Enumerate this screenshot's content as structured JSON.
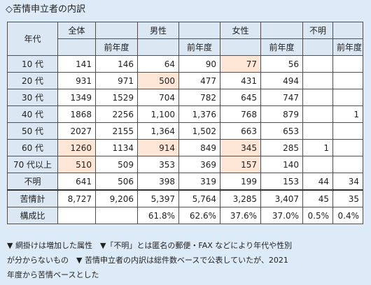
{
  "title": "◇苦情申立者の内訳",
  "table": {
    "corner": "年代",
    "groups": [
      "全体",
      "男性",
      "女性",
      "不明"
    ],
    "prev_label": "前年度",
    "rows": [
      {
        "label": "10 代",
        "cells": [
          "141",
          "146",
          "64",
          "90",
          "77",
          "56",
          "",
          ""
        ],
        "hl": [
          4
        ]
      },
      {
        "label": "20 代",
        "cells": [
          "931",
          "971",
          "500",
          "477",
          "431",
          "494",
          "",
          ""
        ],
        "hl": [
          2
        ]
      },
      {
        "label": "30 代",
        "cells": [
          "1349",
          "1529",
          "704",
          "782",
          "645",
          "747",
          "",
          ""
        ],
        "hl": []
      },
      {
        "label": "40 代",
        "cells": [
          "1868",
          "2256",
          "1,100",
          "1,376",
          "768",
          "879",
          "",
          "1"
        ],
        "hl": []
      },
      {
        "label": "50 代",
        "cells": [
          "2027",
          "2155",
          "1,364",
          "1,502",
          "663",
          "653",
          "",
          ""
        ],
        "hl": []
      },
      {
        "label": "60 代",
        "cells": [
          "1260",
          "1134",
          "914",
          "849",
          "345",
          "285",
          "1",
          ""
        ],
        "hl": [
          0,
          2,
          4
        ]
      },
      {
        "label": "70 代以上",
        "cells": [
          "510",
          "509",
          "353",
          "369",
          "157",
          "140",
          "",
          ""
        ],
        "hl": [
          0,
          4
        ]
      },
      {
        "label": "不明",
        "cells": [
          "641",
          "506",
          "398",
          "319",
          "199",
          "153",
          "44",
          "34"
        ],
        "hl": []
      }
    ],
    "total": {
      "label": "苦情計",
      "cells": [
        "8,727",
        "9,206",
        "5,397",
        "5,764",
        "3,285",
        "3,407",
        "45",
        "35"
      ]
    },
    "ratio": {
      "label": "構成比",
      "cells": [
        "",
        "",
        "61.8%",
        "62.6%",
        "37.6%",
        "37.0%",
        "0.5%",
        "0.4%"
      ]
    }
  },
  "notes": [
    "▼ 網掛けは増加した属性　▼「不明」とは匿名の郵便・FAX などにより年代や性別",
    "が分からないもの　▼ 苦情申立者の内訳は総件数ベースで公表していたが、2021",
    "年度から苦情ベースとした"
  ],
  "colors": {
    "background": "#ddeaf7",
    "header": "#dbe7f3",
    "highlight": "#fde6d6"
  }
}
